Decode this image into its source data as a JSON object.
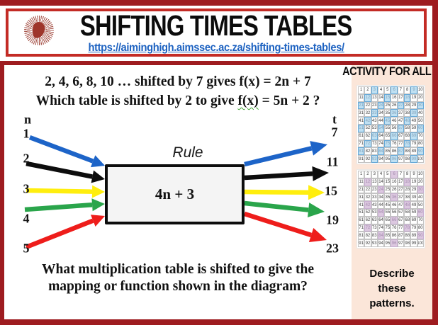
{
  "page": {
    "background": "#ffffff",
    "frame_dark_red": "#9e1c20",
    "header_border_red": "#c32b25",
    "activity_panel_pink": "#fbe6d9"
  },
  "header": {
    "title": "SHIFTING TIMES TABLES",
    "link": "https://aiminghigh.aimssec.ac.za/shifting-times-tables/",
    "logo": "aimssec-sunburst-africa-logo"
  },
  "questions": {
    "line1": "2, 4, 6, 8, 10 … shifted by 7 gives f(x) = 2n + 7",
    "line2_pre": "Which table is shifted by 2 to give ",
    "line2_fx": "f(x)",
    "line2_post": " = 5n + 2 ?",
    "bottom_line1": "What multiplication table is shifted to give the",
    "bottom_line2": "mapping or function shown in the diagram?"
  },
  "diagram": {
    "left_header": "n",
    "right_header": "t",
    "inputs": [
      "1",
      "2",
      "3",
      "4",
      "5"
    ],
    "outputs": [
      "7",
      "11",
      "15",
      "19",
      "23"
    ],
    "rule_label": "Rule",
    "rule_text": "4n + 3",
    "arrow_colors": [
      "#1d64c8",
      "#0d0d0d",
      "#ffee0e",
      "#2aa54b",
      "#ee1d1b"
    ]
  },
  "activity": {
    "title": "ACTIVITY FOR ALL",
    "footer": "Describe these patterns.",
    "grids": [
      {
        "start": 1,
        "count": 100,
        "columns": 10,
        "highlighted": [
          3,
          6,
          9,
          12,
          15,
          18,
          21,
          24,
          27,
          30,
          33,
          36,
          39,
          42,
          45,
          48,
          51,
          54,
          57,
          60,
          63,
          66,
          69,
          72,
          75,
          78,
          81,
          84,
          87,
          90,
          93,
          96,
          99
        ],
        "highlight_fill": "#bfe0f2",
        "highlight_border": "#66a9d8",
        "highlight_text": "#86a3ba",
        "cell_text": "#3d3d3d"
      },
      {
        "start": 1,
        "count": 100,
        "columns": 10,
        "highlighted": [
          6,
          12,
          18,
          24,
          30,
          36,
          42,
          48,
          54,
          60,
          66,
          72,
          78,
          84,
          90,
          96
        ],
        "highlight_fill": "#dcc8e0",
        "highlight_border": "#c9afd2",
        "highlight_text": "#a48bae",
        "cell_text": "#3d3d3d"
      }
    ]
  }
}
